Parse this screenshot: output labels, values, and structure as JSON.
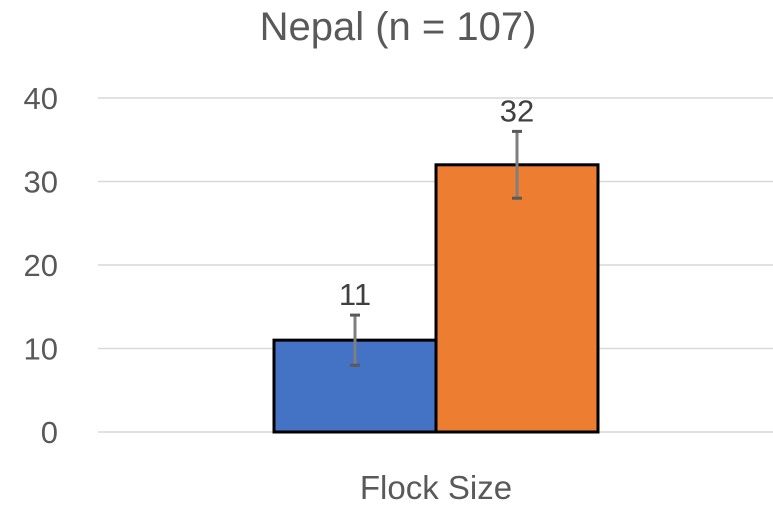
{
  "chart_data": {
    "type": "bar",
    "title": "Nepal (n = 107)",
    "categories": [
      "Flock Size"
    ],
    "series": [
      {
        "values": [
          11
        ],
        "error": [
          3
        ],
        "color": "#4472C4"
      },
      {
        "values": [
          32
        ],
        "error": [
          4
        ],
        "color": "#ED7D31"
      }
    ],
    "data_labels": [
      "11",
      "32"
    ],
    "xlabel": "Flock Size",
    "ylabel": "",
    "ylim": [
      0,
      40
    ],
    "yticks": [
      0,
      10,
      20,
      30,
      40
    ],
    "grid": true,
    "legend": "none"
  }
}
